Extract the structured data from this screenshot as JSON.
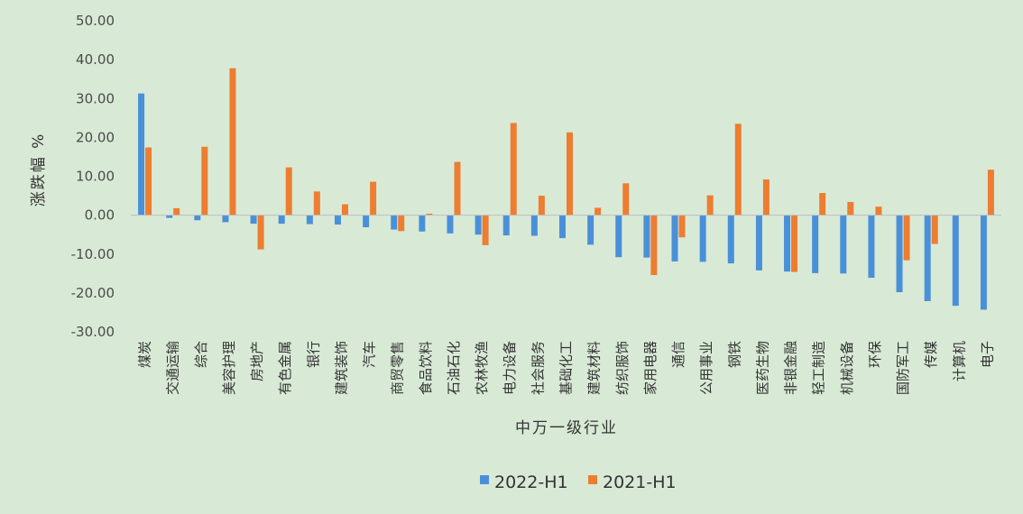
{
  "chart_data": {
    "type": "bar",
    "title": "",
    "xlabel": "中万一级行业",
    "ylabel": "涨跌幅 %",
    "ylim": [
      -30,
      50
    ],
    "yticks": [
      "50.00",
      "40.00",
      "30.00",
      "20.00",
      "10.00",
      "0.00",
      "-10.00",
      "-20.00",
      "-30.00"
    ],
    "ytick_values": [
      50,
      40,
      30,
      20,
      10,
      0,
      -10,
      -20,
      -30
    ],
    "grid": false,
    "legend_position": "bottom",
    "categories": [
      "煤炭",
      "交通运输",
      "综合",
      "美容护理",
      "房地产",
      "有色金属",
      "银行",
      "建筑装饰",
      "汽车",
      "商贸零售",
      "食品饮料",
      "石油石化",
      "农林牧渔",
      "电力设备",
      "社会服务",
      "基础化工",
      "建筑材料",
      "纺织服饰",
      "家用电器",
      "通信",
      "公用事业",
      "钢铁",
      "医药生物",
      "非银金融",
      "轻工制造",
      "机械设备",
      "环保",
      "国防军工",
      "传媒",
      "计算机",
      "电子"
    ],
    "series": [
      {
        "name": "2022-H1",
        "color": "#4a90d9",
        "values": [
          31.3,
          -0.7,
          -1.3,
          -1.8,
          -2.2,
          -2.2,
          -2.3,
          -2.4,
          -3.1,
          -3.7,
          -4.2,
          -4.7,
          -5.0,
          -5.2,
          -5.3,
          -5.9,
          -7.6,
          -10.8,
          -10.9,
          -11.9,
          -12.0,
          -12.4,
          -14.2,
          -14.5,
          -14.9,
          -15.0,
          -16.1,
          -19.8,
          -22.1,
          -23.3,
          -24.3
        ]
      },
      {
        "name": "2021-H1",
        "color": "#ed7d31",
        "values": [
          17.4,
          1.8,
          17.6,
          37.8,
          -8.8,
          12.3,
          6.1,
          2.8,
          8.6,
          -4.1,
          0.4,
          13.7,
          -7.7,
          23.7,
          5.0,
          21.3,
          1.9,
          8.2,
          -15.4,
          -5.7,
          5.1,
          23.5,
          9.2,
          -14.6,
          5.7,
          3.4,
          2.2,
          -11.6,
          -7.4,
          0.0,
          11.7
        ]
      }
    ]
  }
}
